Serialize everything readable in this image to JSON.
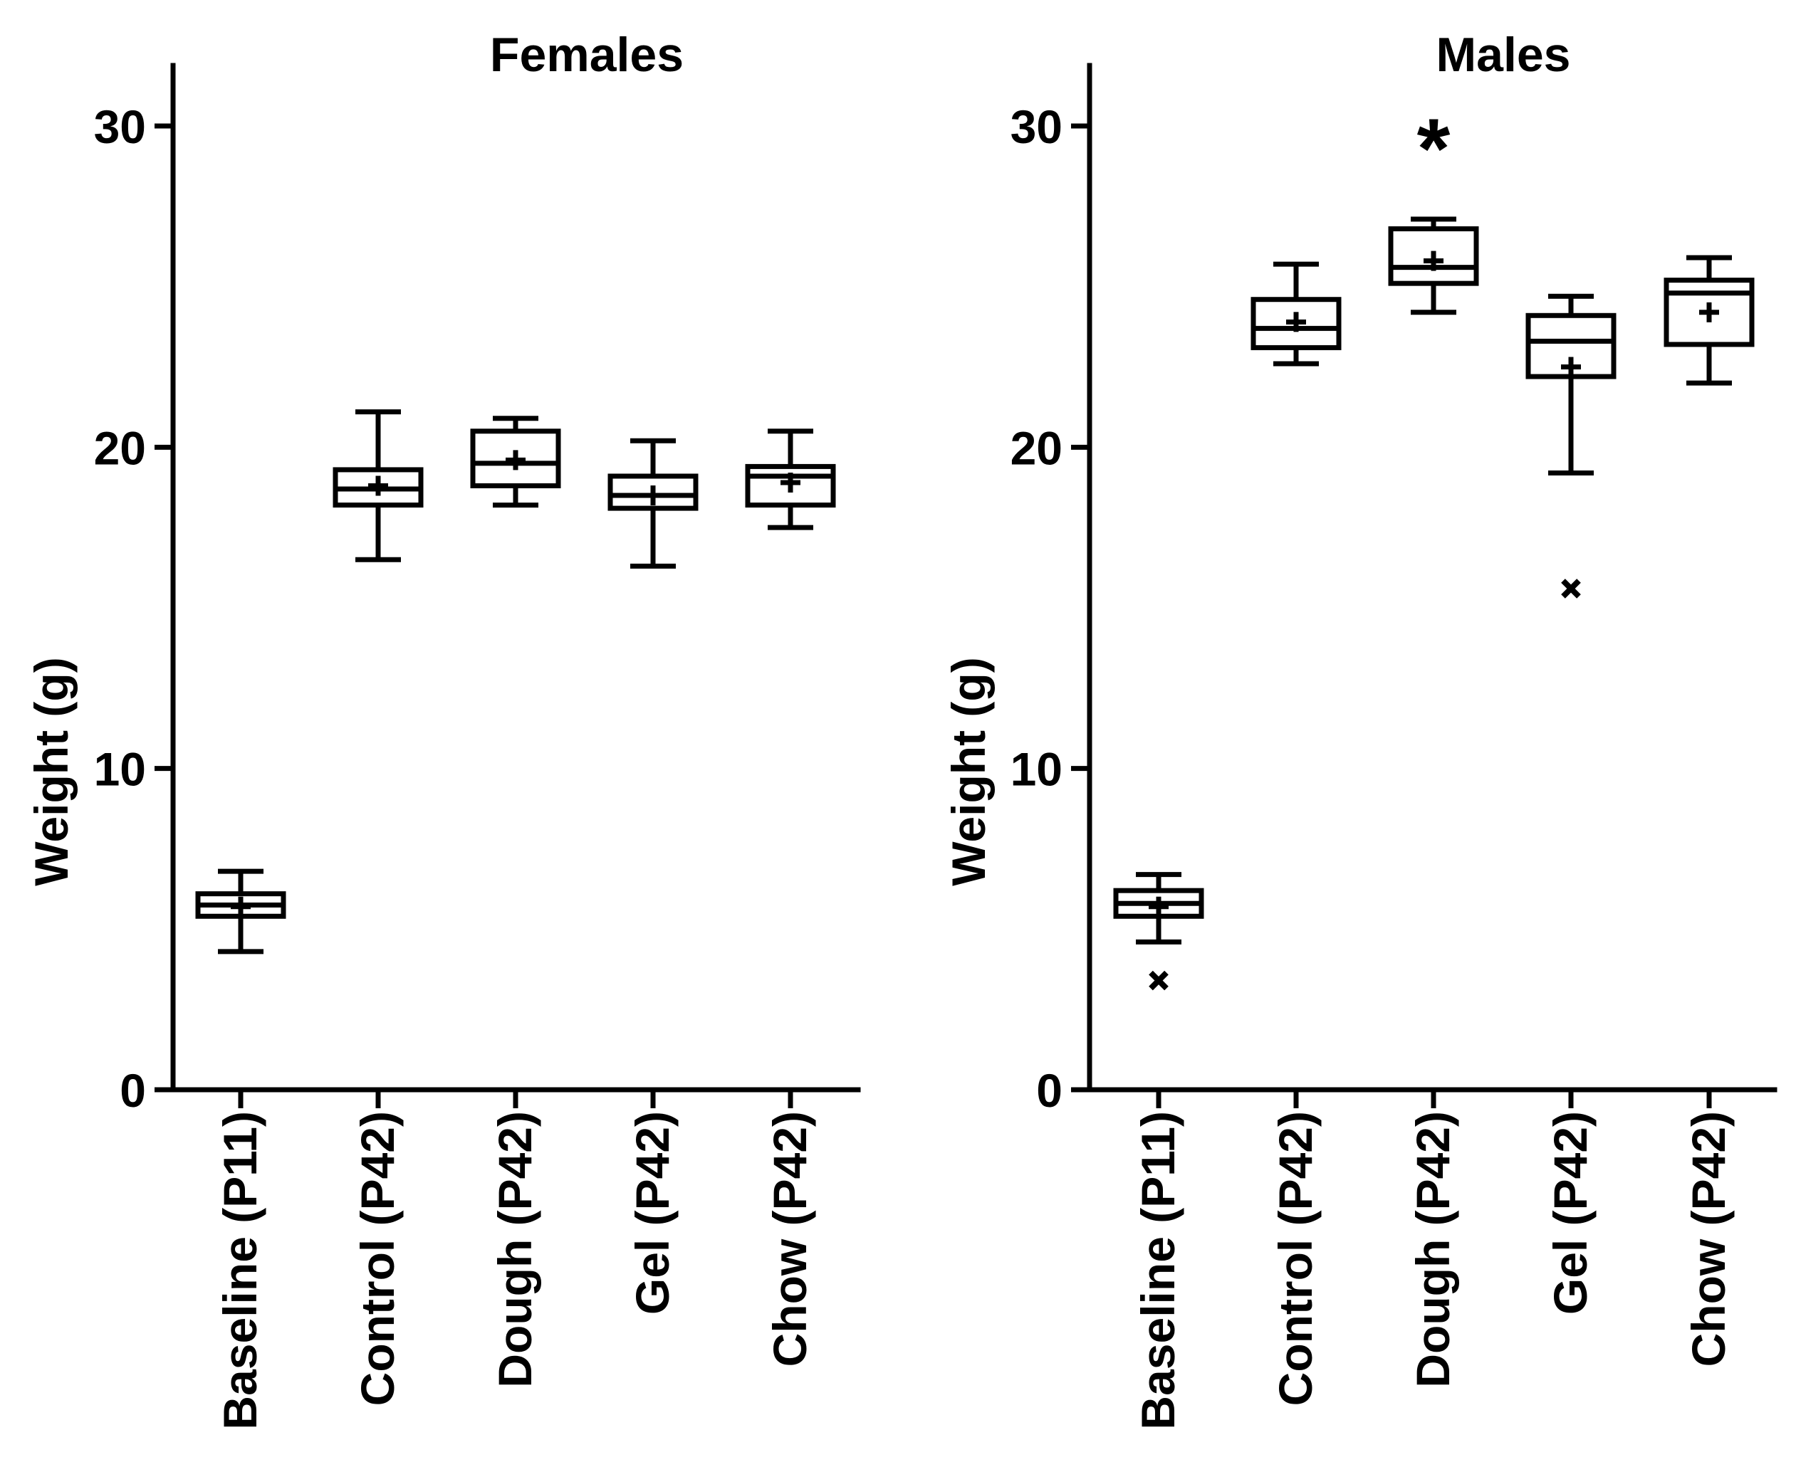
{
  "chart_data": [
    {
      "type": "boxplot",
      "title": "Females",
      "xlabel": "",
      "ylabel": "Weight (g)",
      "ylim": [
        0,
        32
      ],
      "yticks": [
        0,
        10,
        20,
        30
      ],
      "categories": [
        "Baseline (P11)",
        "Control (P42)",
        "Dough (P42)",
        "Gel (P42)",
        "Chow (P42)"
      ],
      "boxes": [
        {
          "category": "Baseline (P11)",
          "min": 4.3,
          "q1": 5.4,
          "median": 5.75,
          "q3": 6.1,
          "max": 6.8,
          "mean": 5.7,
          "outliers": [],
          "significant": false
        },
        {
          "category": "Control (P42)",
          "min": 16.5,
          "q1": 18.2,
          "median": 18.7,
          "q3": 19.3,
          "max": 21.1,
          "mean": 18.8,
          "outliers": [],
          "significant": false
        },
        {
          "category": "Dough (P42)",
          "min": 18.2,
          "q1": 18.8,
          "median": 19.5,
          "q3": 20.5,
          "max": 20.9,
          "mean": 19.6,
          "outliers": [],
          "significant": false
        },
        {
          "category": "Gel (P42)",
          "min": 16.3,
          "q1": 18.1,
          "median": 18.5,
          "q3": 19.1,
          "max": 20.2,
          "mean": 18.5,
          "outliers": [],
          "significant": false
        },
        {
          "category": "Chow (P42)",
          "min": 17.5,
          "q1": 18.2,
          "median": 19.1,
          "q3": 19.4,
          "max": 20.5,
          "mean": 18.9,
          "outliers": [],
          "significant": false
        }
      ]
    },
    {
      "type": "boxplot",
      "title": "Males",
      "xlabel": "",
      "ylabel": "Weight (g)",
      "ylim": [
        0,
        32
      ],
      "yticks": [
        0,
        10,
        20,
        30
      ],
      "significance_marker": "*",
      "categories": [
        "Baseline (P11)",
        "Control (P42)",
        "Dough (P42)",
        "Gel (P42)",
        "Chow (P42)"
      ],
      "boxes": [
        {
          "category": "Baseline (P11)",
          "min": 4.6,
          "q1": 5.4,
          "median": 5.8,
          "q3": 6.2,
          "max": 6.7,
          "mean": 5.7,
          "outliers": [
            3.4
          ],
          "significant": false
        },
        {
          "category": "Control (P42)",
          "min": 22.6,
          "q1": 23.1,
          "median": 23.7,
          "q3": 24.6,
          "max": 25.7,
          "mean": 23.9,
          "outliers": [],
          "significant": false
        },
        {
          "category": "Dough (P42)",
          "min": 24.2,
          "q1": 25.1,
          "median": 25.6,
          "q3": 26.8,
          "max": 27.1,
          "mean": 25.8,
          "outliers": [],
          "significant": true
        },
        {
          "category": "Gel (P42)",
          "min": 19.2,
          "q1": 22.2,
          "median": 23.3,
          "q3": 24.1,
          "max": 24.7,
          "mean": 22.5,
          "outliers": [
            15.6
          ],
          "significant": false
        },
        {
          "category": "Chow (P42)",
          "min": 22.0,
          "q1": 23.2,
          "median": 24.8,
          "q3": 25.2,
          "max": 25.9,
          "mean": 24.2,
          "outliers": [],
          "significant": false
        }
      ]
    }
  ]
}
